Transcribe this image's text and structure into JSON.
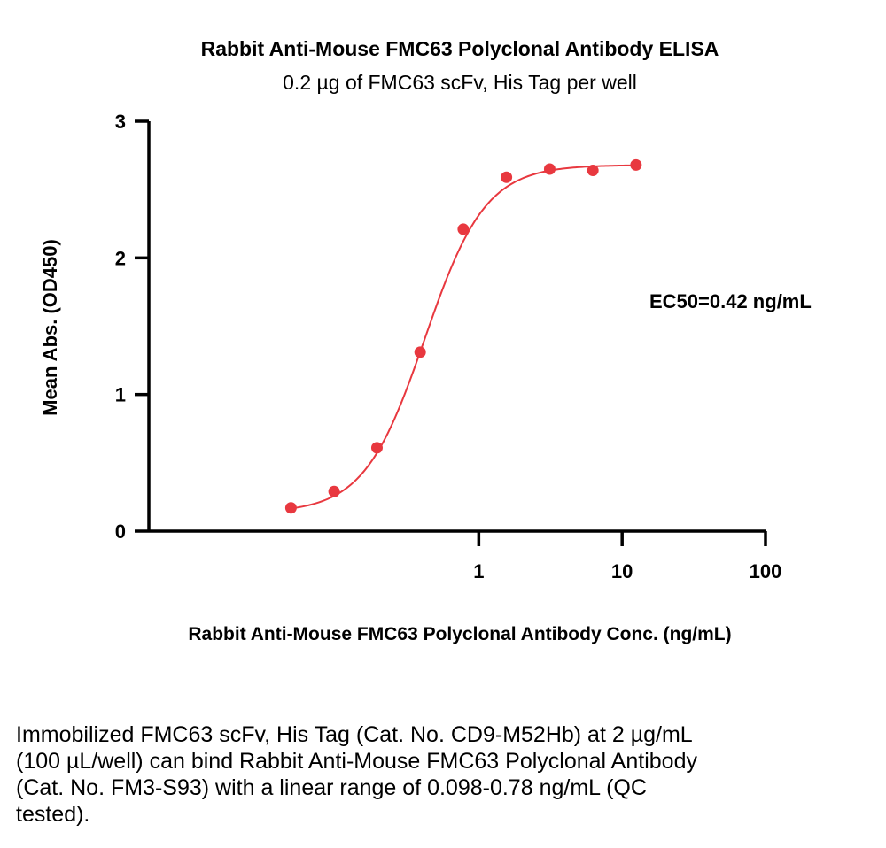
{
  "chart_data": {
    "type": "scatter",
    "title": "Rabbit Anti-Mouse FMC63 Polyclonal Antibody ELISA",
    "subtitle": "0.2 µg of FMC63 scFv, His Tag per well",
    "xlabel": "Rabbit Anti-Mouse FMC63 Polyclonal Antibody Conc. (ng/mL)",
    "ylabel": "Mean Abs. (OD450)",
    "xscale": "log",
    "xlim": [
      0.005,
      100
    ],
    "ylim": [
      0,
      3
    ],
    "xticks": [
      1,
      10,
      100
    ],
    "xtick_labels": [
      "1",
      "10",
      "100"
    ],
    "yticks": [
      0,
      1,
      2,
      3
    ],
    "ytick_labels": [
      "0",
      "1",
      "2",
      "3"
    ],
    "grid": false,
    "annotation": "EC50=0.42 ng/mL",
    "marker_color": "#e8383f",
    "fit_color": "#e8383f",
    "series": [
      {
        "x": [
          0.049,
          0.098,
          0.195,
          0.39,
          0.78,
          1.56,
          3.125,
          6.25,
          12.5
        ],
        "y": [
          0.17,
          0.29,
          0.61,
          1.31,
          2.21,
          2.59,
          2.65,
          2.64,
          2.68
        ]
      }
    ]
  },
  "caption": "Immobilized FMC63 scFv, His Tag (Cat. No. CD9-M52Hb) at 2 µg/mL (100 µL/well) can bind Rabbit Anti-Mouse FMC63 Polyclonal Antibody (Cat. No. FM3-S93) with a linear range of 0.098-0.78 ng/mL (QC tested)."
}
